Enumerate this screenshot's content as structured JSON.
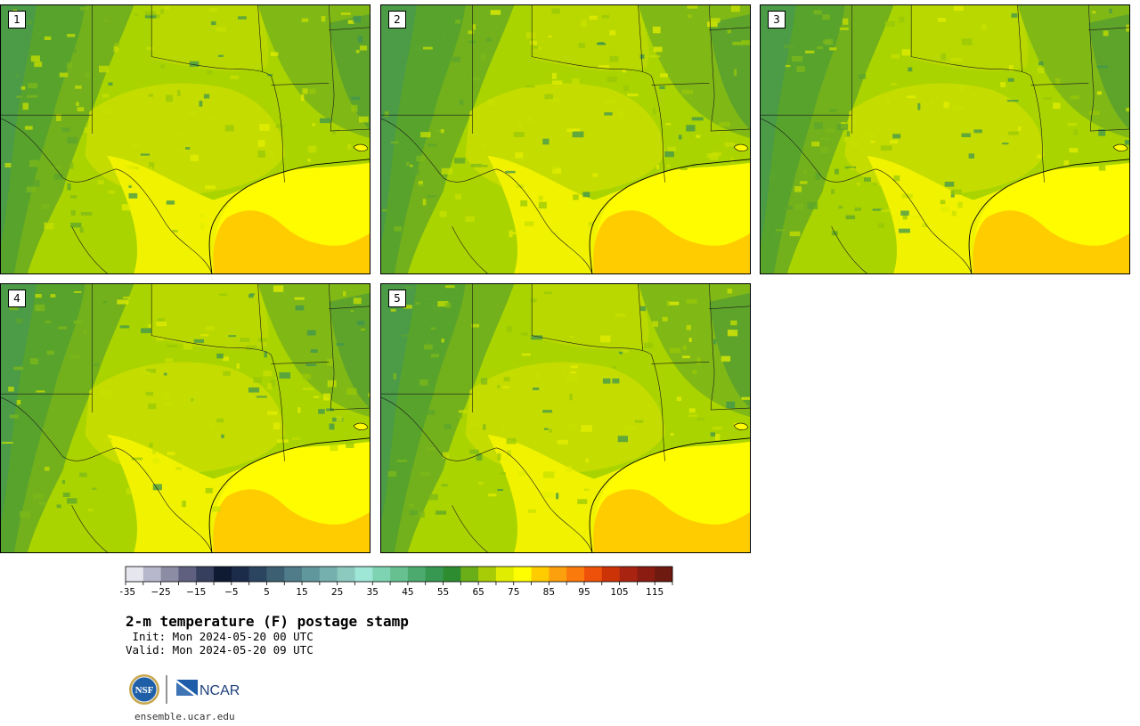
{
  "panels": [
    {
      "label": "1"
    },
    {
      "label": "2"
    },
    {
      "label": "3"
    },
    {
      "label": "4"
    },
    {
      "label": "5"
    }
  ],
  "colorbar": {
    "colors": [
      "#e6e6ee",
      "#b8b8cc",
      "#8c8ca4",
      "#5f6080",
      "#36405e",
      "#0f1a33",
      "#1b2b4a",
      "#2b4560",
      "#3c6072",
      "#4f7c88",
      "#60979c",
      "#76b0ae",
      "#8ccac0",
      "#9ee6d6",
      "#7ed4b2",
      "#66c090",
      "#4caa6e",
      "#379852",
      "#2e8c30",
      "#6aae18",
      "#a8cc06",
      "#e0ec00",
      "#fefe00",
      "#ffcc00",
      "#fca00e",
      "#fb7a0c",
      "#ee520a",
      "#cc3408",
      "#a82410",
      "#8a1c12",
      "#6e1a10"
    ],
    "tick_labels": [
      "−35",
      "−25",
      "−15",
      "−5",
      "5",
      "15",
      "25",
      "35",
      "45",
      "55",
      "65",
      "75",
      "85",
      "95",
      "105",
      "115"
    ]
  },
  "title": "2-m temperature (F) postage stamp",
  "init": " Init: Mon 2024-05-20 00 UTC",
  "valid": "Valid: Mon 2024-05-20 09 UTC",
  "logos": {
    "nsf": "NSF",
    "ncar": "NCAR"
  },
  "site": "ensemble.ucar.edu"
}
